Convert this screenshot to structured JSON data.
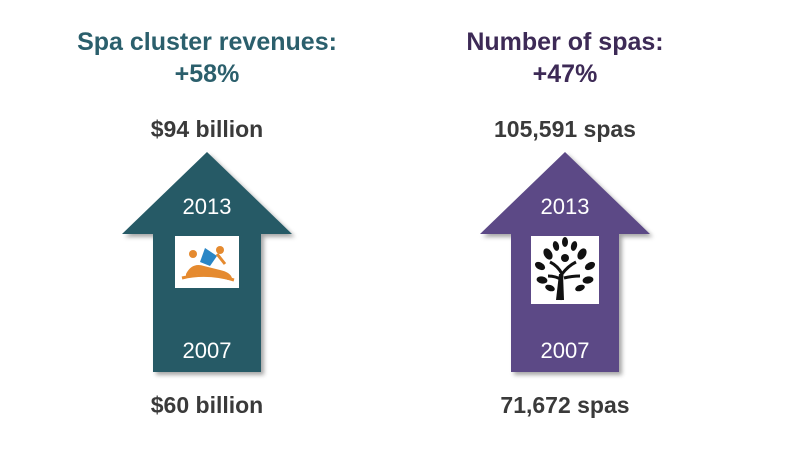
{
  "colors": {
    "revenue_arrow": "#255a66",
    "spas_arrow": "#5c4a86",
    "revenue_heading": "#2b5f6c",
    "spas_heading": "#3d2a56",
    "value_text": "#3a3a3a"
  },
  "revenue": {
    "heading_line1": "Spa cluster revenues:",
    "heading_line2": "+58%",
    "top_value": "$94 billion",
    "bottom_value": "$60 billion",
    "top_year": "2013",
    "bottom_year": "2007",
    "icon": "massage-icon"
  },
  "spas": {
    "heading_line1": "Number of spas:",
    "heading_line2": "+47%",
    "top_value": "105,591 spas",
    "bottom_value": "71,672 spas",
    "top_year": "2013",
    "bottom_year": "2007",
    "icon": "tree-icon"
  }
}
